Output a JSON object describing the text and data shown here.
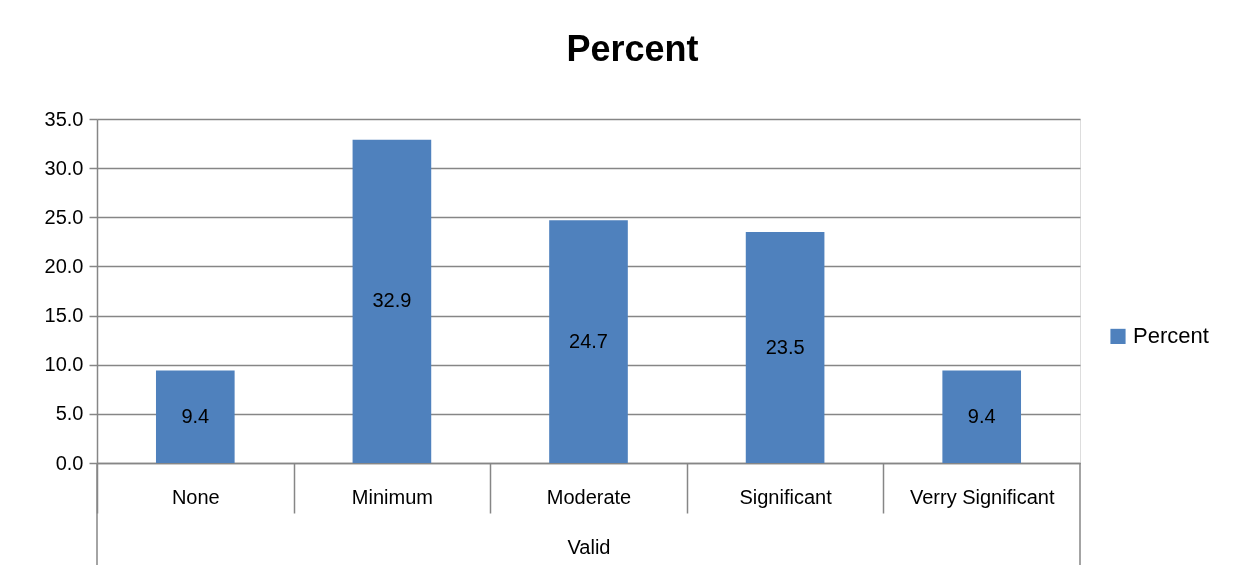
{
  "chart_data": {
    "type": "bar",
    "title": "Percent",
    "xlabel": "Valid",
    "categories": [
      "None",
      "Minimum",
      "Moderate",
      "Significant",
      "Verry Significant"
    ],
    "series": [
      {
        "name": "Percent",
        "color": "#4f81bd",
        "values": [
          9.4,
          32.9,
          24.7,
          23.5,
          9.4
        ]
      }
    ],
    "ylim": [
      0,
      35
    ],
    "yticks": [
      {
        "value": 0,
        "label": "0.0"
      },
      {
        "value": 5,
        "label": "5.0"
      },
      {
        "value": 10,
        "label": "10.0"
      },
      {
        "value": 15,
        "label": "15.0"
      },
      {
        "value": 20,
        "label": "20.0"
      },
      {
        "value": 25,
        "label": "25.0"
      },
      {
        "value": 30,
        "label": "30.0"
      },
      {
        "value": 35,
        "label": "35.0"
      }
    ],
    "grid": "y",
    "legend": "right",
    "data_labels": true
  }
}
